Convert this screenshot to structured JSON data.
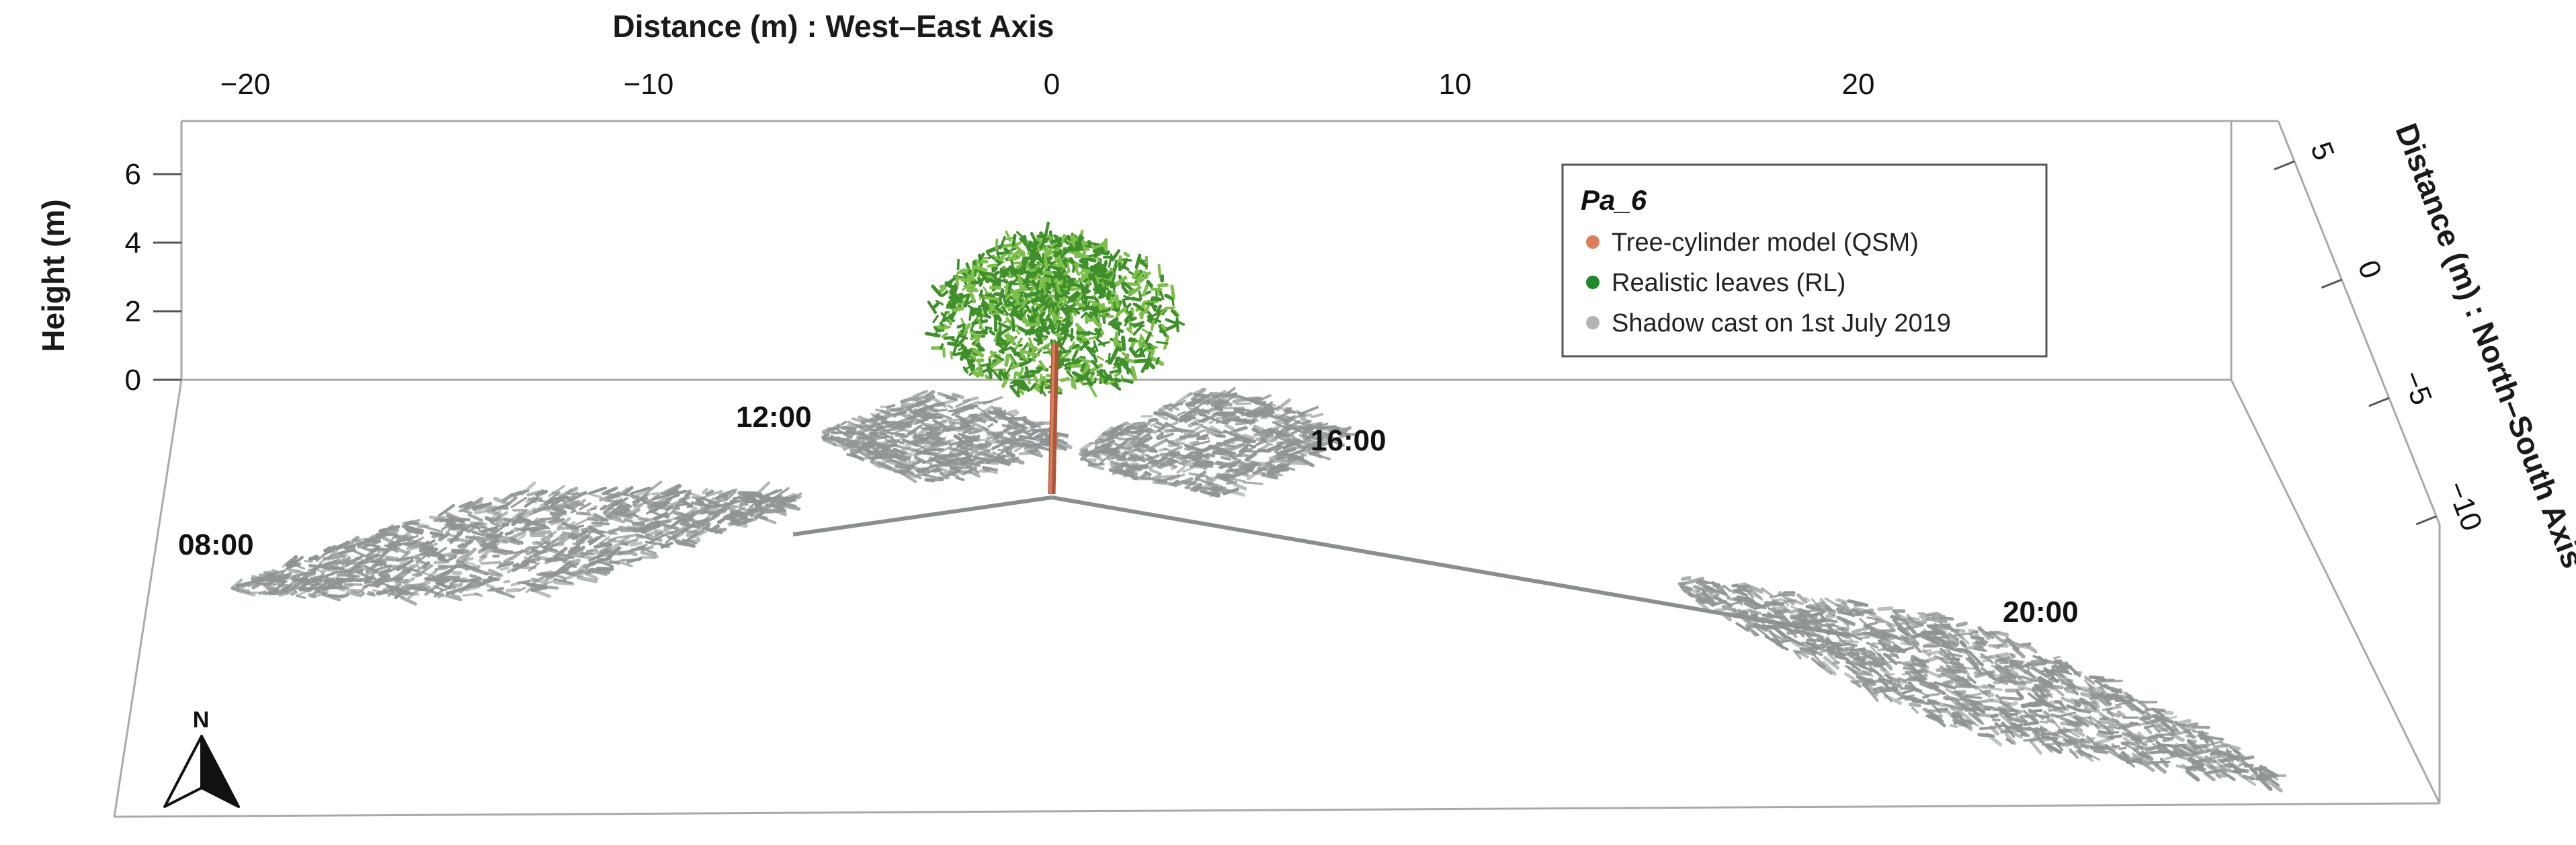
{
  "chart_data": {
    "type": "scatter",
    "title": "",
    "x_axis": {
      "label": "Distance (m) : West–East Axis",
      "ticks": [
        -20,
        -10,
        0,
        10,
        20
      ],
      "tick_labels": [
        "−20",
        "−10",
        "0",
        "10",
        "20"
      ]
    },
    "y_axis": {
      "label": "Distance (m) : North–South Axis",
      "ticks": [
        5,
        0,
        -5,
        -10
      ],
      "tick_labels": [
        "5",
        "0",
        "−5",
        "−10"
      ]
    },
    "z_axis": {
      "label": "Height (m)",
      "ticks": [
        0,
        2,
        4,
        6
      ],
      "tick_labels": [
        "0",
        "2",
        "4",
        "6"
      ]
    },
    "legend": {
      "title": "Pa_6",
      "placement": "top-right",
      "entries": [
        {
          "label": "Tree-cylinder model (QSM)",
          "color": "#d9805a"
        },
        {
          "label": "Realistic leaves (RL)",
          "color": "#1f8a2a"
        },
        {
          "label": "Shadow cast on 1st July 2019",
          "color": "#b3b3b3"
        }
      ]
    },
    "shadows": [
      {
        "time": "08:00",
        "label_anchor": "left"
      },
      {
        "time": "12:00",
        "label_anchor": "upper-left"
      },
      {
        "time": "16:00",
        "label_anchor": "upper-right"
      },
      {
        "time": "20:00",
        "label_anchor": "right"
      }
    ],
    "compass_label": "N",
    "colors": {
      "stem": "#b0553a",
      "leaves": "#3f8f2a",
      "leaves_light": "#7cbf4a",
      "shadow": "#8e9594",
      "box": "#a9a9a9"
    }
  }
}
